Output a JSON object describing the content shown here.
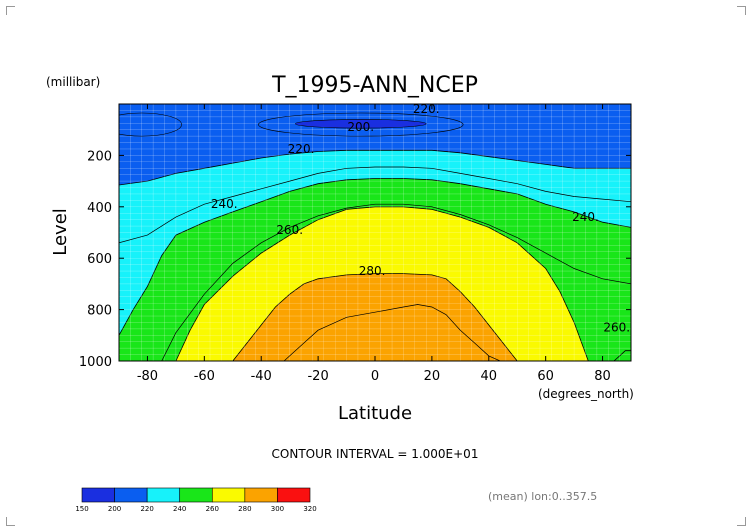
{
  "chart_data": {
    "type": "contour",
    "title": "T_1995-ANN_NCEP",
    "xlabel": "Latitude",
    "ylabel": "Level",
    "x_units": "(degrees_north)",
    "y_units": "(millibar)",
    "xlim": [
      -90,
      90
    ],
    "ylim": [
      1000,
      0
    ],
    "x_ticks": [
      -80,
      -60,
      -40,
      -20,
      0,
      20,
      40,
      60,
      80
    ],
    "y_ticks": [
      200,
      400,
      600,
      800,
      1000
    ],
    "grid": true,
    "contour_interval_text": "CONTOUR INTERVAL = 1.000E+01",
    "footer_text": "(mean) lon:0..357.5",
    "contour_labels": [
      {
        "text": "220.",
        "x": 18,
        "y": 20
      },
      {
        "text": "200.",
        "x": -5,
        "y": 90
      },
      {
        "text": "220.",
        "x": -26,
        "y": 175
      },
      {
        "text": "240.",
        "x": -53,
        "y": 390
      },
      {
        "text": "260.",
        "x": -30,
        "y": 490
      },
      {
        "text": "280.",
        "x": -1,
        "y": 650
      },
      {
        "text": "240.",
        "x": 74,
        "y": 440
      },
      {
        "text": "260.",
        "x": 85,
        "y": 870
      }
    ],
    "colorbar": {
      "levels": [
        150,
        200,
        220,
        240,
        260,
        280,
        300,
        320
      ],
      "colors": [
        "#1a2fe0",
        "#0a5ef0",
        "#17f2fa",
        "#19e619",
        "#fafa00",
        "#fba300",
        "#fa1010"
      ]
    },
    "bands": [
      {
        "name": "b230",
        "color": "#17f2fa",
        "x": [
          -90,
          -80,
          -70,
          -60,
          -50,
          -40,
          -30,
          -20,
          -10,
          0,
          10,
          20,
          30,
          40,
          50,
          60,
          70,
          80,
          90
        ],
        "top": [
          315,
          300,
          270,
          250,
          230,
          210,
          195,
          185,
          180,
          180,
          180,
          180,
          190,
          205,
          220,
          235,
          250,
          250,
          250
        ],
        "bottom": [
          1000,
          1000,
          1000,
          1000,
          1000,
          1000,
          1000,
          1000,
          1000,
          1000,
          1000,
          1000,
          1000,
          1000,
          1000,
          1000,
          1000,
          1000,
          1000
        ]
      },
      {
        "name": "b250",
        "color": "#19e619",
        "x": [
          -90,
          -85,
          -80,
          -75,
          -70,
          -60,
          -50,
          -40,
          -30,
          -20,
          -10,
          0,
          10,
          20,
          30,
          40,
          50,
          60,
          70,
          80,
          90
        ],
        "top": [
          900,
          800,
          710,
          590,
          510,
          460,
          420,
          380,
          340,
          310,
          295,
          290,
          290,
          295,
          310,
          330,
          350,
          390,
          420,
          460,
          480
        ],
        "bottom": [
          1000,
          1000,
          1000,
          1000,
          1000,
          1000,
          1000,
          1000,
          1000,
          1000,
          1000,
          1000,
          1000,
          1000,
          1000,
          1000,
          1000,
          1000,
          1000,
          1000,
          1000
        ]
      },
      {
        "name": "b270",
        "color": "#fafa00",
        "x": [
          -70,
          -65,
          -60,
          -50,
          -40,
          -30,
          -20,
          -10,
          0,
          10,
          20,
          30,
          40,
          50,
          60,
          65,
          70,
          75
        ],
        "top": [
          1000,
          880,
          780,
          670,
          580,
          510,
          450,
          410,
          400,
          400,
          410,
          440,
          480,
          540,
          640,
          730,
          850,
          1000
        ],
        "bottom": [
          1000,
          1000,
          1000,
          1000,
          1000,
          1000,
          1000,
          1000,
          1000,
          1000,
          1000,
          1000,
          1000,
          1000,
          1000,
          1000,
          1000,
          1000
        ]
      },
      {
        "name": "b290",
        "color": "#fba300",
        "x": [
          -50,
          -45,
          -40,
          -35,
          -30,
          -25,
          -20,
          -10,
          0,
          10,
          20,
          25,
          30,
          35,
          40,
          45,
          50
        ],
        "top": [
          1000,
          930,
          860,
          790,
          740,
          700,
          680,
          665,
          660,
          660,
          665,
          680,
          730,
          790,
          860,
          930,
          1000
        ],
        "bottom": [
          1000,
          1000,
          1000,
          1000,
          1000,
          1000,
          1000,
          1000,
          1000,
          1000,
          1000,
          1000,
          1000,
          1000,
          1000,
          1000,
          1000
        ]
      },
      {
        "name": "b250_corner",
        "color": "#19e619",
        "x": [
          84,
          86,
          88,
          90
        ],
        "top": [
          1000,
          980,
          960,
          960
        ],
        "bottom": [
          1000,
          1000,
          1000,
          1000
        ]
      }
    ],
    "ellipses": [
      {
        "name": "b210_core",
        "color": "#1a2fe0",
        "cx": -5,
        "cy": 77,
        "rx": 23,
        "ry": 17
      },
      {
        "name": "c210_north",
        "color": "none",
        "cx": -5,
        "cy": 80,
        "rx": 36,
        "ry": 45
      },
      {
        "name": "c210_west",
        "color": "none",
        "cx": -82,
        "cy": 80,
        "rx": 14,
        "ry": 45
      }
    ],
    "contours": [
      {
        "name": "c245",
        "x": [
          -90,
          -80,
          -70,
          -60,
          -50,
          -40,
          -30,
          -20,
          -10,
          0,
          10,
          20,
          30,
          40,
          50,
          60,
          70,
          80,
          90
        ],
        "y": [
          540,
          510,
          440,
          390,
          360,
          330,
          300,
          270,
          250,
          245,
          245,
          250,
          270,
          290,
          310,
          340,
          360,
          370,
          380
        ]
      },
      {
        "name": "c265",
        "x": [
          -75,
          -70,
          -60,
          -50,
          -40,
          -30,
          -20,
          -10,
          0,
          10,
          20,
          30,
          40,
          50,
          60,
          70,
          80,
          90
        ],
        "y": [
          1000,
          890,
          740,
          620,
          540,
          480,
          435,
          405,
          390,
          390,
          400,
          430,
          470,
          520,
          580,
          640,
          680,
          700
        ]
      },
      {
        "name": "c285",
        "x": [
          -32,
          -25,
          -20,
          -10,
          0,
          10,
          15,
          20,
          25,
          30,
          35,
          40,
          44
        ],
        "y": [
          1000,
          930,
          880,
          830,
          810,
          790,
          780,
          790,
          820,
          880,
          930,
          980,
          1000
        ]
      }
    ]
  }
}
